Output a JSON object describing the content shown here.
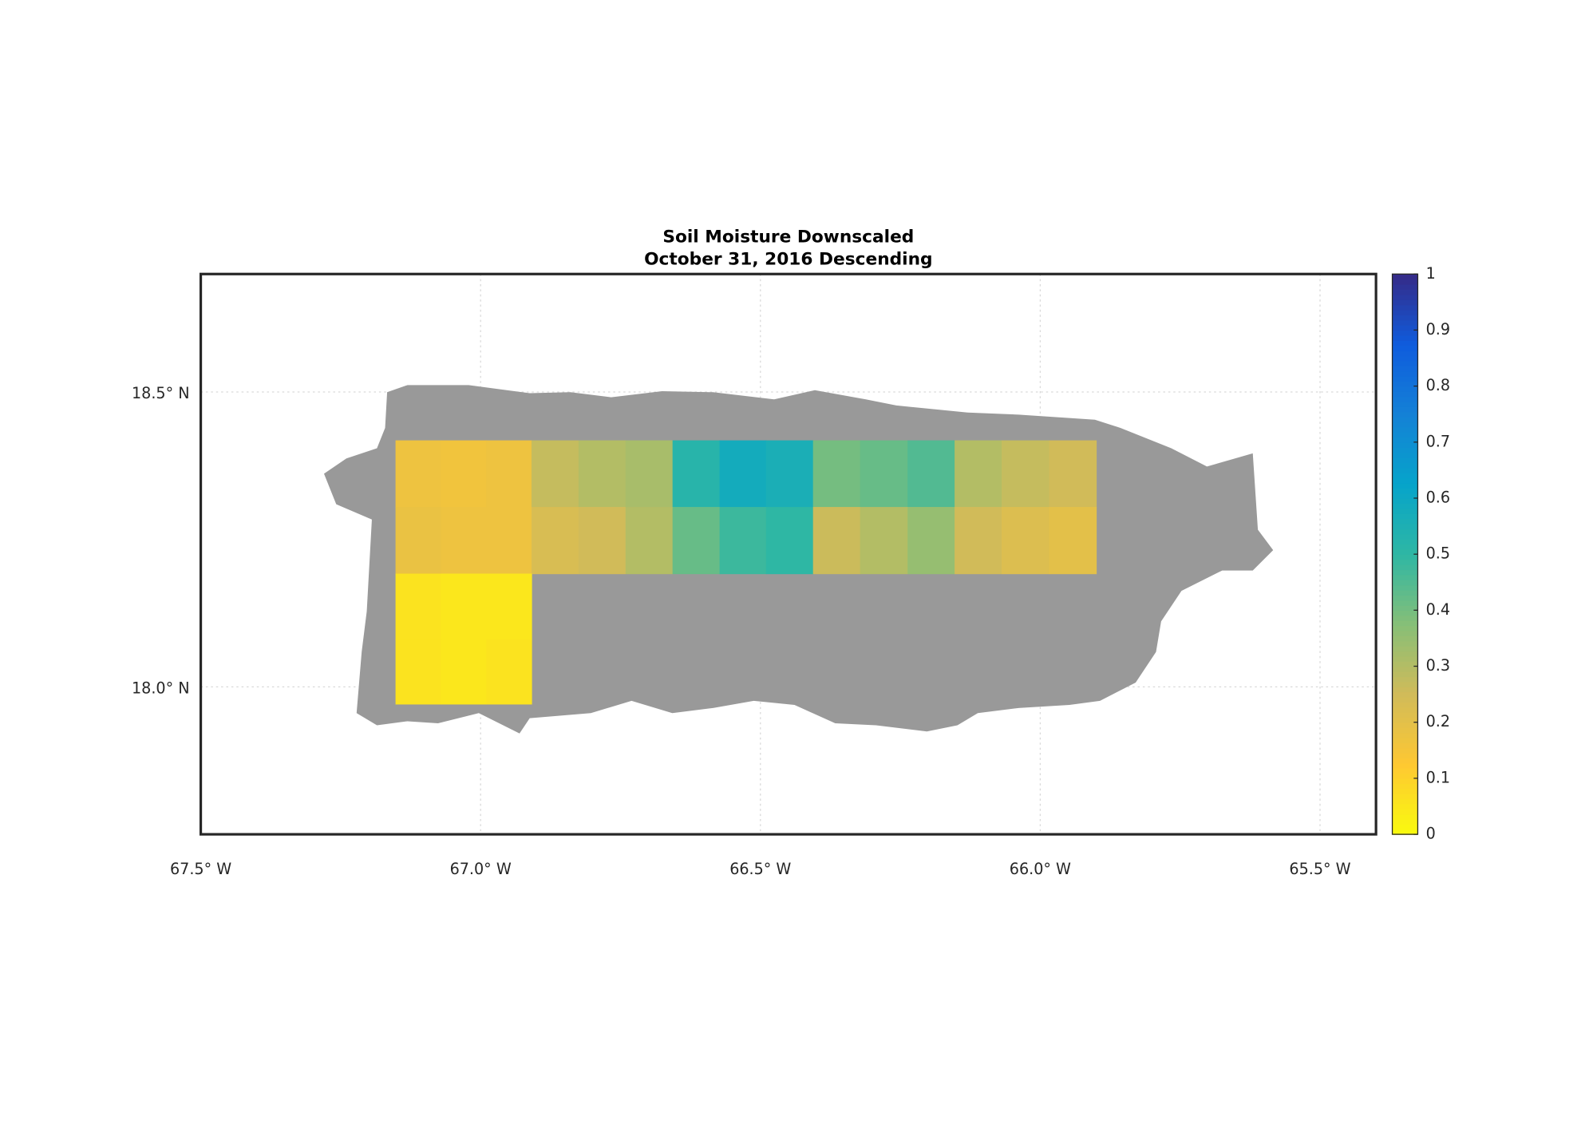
{
  "chart_data": {
    "type": "heatmap-map",
    "title": "Soil Moisture Downscaled",
    "subtitle": "October 31, 2016 Descending",
    "xlim": [
      -67.5,
      -65.4
    ],
    "ylim": [
      17.75,
      18.7
    ],
    "xticks": [
      {
        "value": -67.5,
        "label": "67.5° W"
      },
      {
        "value": -67.0,
        "label": "67.0° W"
      },
      {
        "value": -66.5,
        "label": "66.5° W"
      },
      {
        "value": -66.0,
        "label": "66.0° W"
      },
      {
        "value": -65.5,
        "label": "65.5° W"
      }
    ],
    "yticks": [
      {
        "value": 18.0,
        "label": "18.0° N"
      },
      {
        "value": 18.5,
        "label": "18.5° N"
      }
    ],
    "grid": true,
    "land_color": "#999999",
    "colormap": [
      "#f9fb0e",
      "#fec832",
      "#d1bb59",
      "#87bf77",
      "#2eb7a4",
      "#06a4ca",
      "#1481d6",
      "#0f5cdd",
      "#352a87"
    ],
    "colorbar": {
      "lim": [
        0,
        1
      ],
      "ticks": [
        0,
        0.1,
        0.2,
        0.3,
        0.4,
        0.5,
        0.6,
        0.7,
        0.8,
        0.9,
        1
      ]
    },
    "grid_data": {
      "lon_edges": [
        -67.152,
        -67.071,
        -66.99,
        -66.909,
        -66.825,
        -66.741,
        -66.657,
        -66.573,
        -66.49,
        -66.406,
        -66.322,
        -66.237,
        -66.153,
        -66.069,
        -65.984,
        -65.9
      ],
      "lat_edges": [
        18.418,
        18.305,
        18.192,
        18.08,
        17.971
      ],
      "values": [
        [
          0.17,
          0.16,
          0.17,
          0.27,
          0.3,
          0.32,
          0.52,
          0.58,
          0.56,
          0.4,
          0.42,
          0.45,
          0.3,
          0.27,
          0.25
        ],
        [
          0.18,
          0.17,
          0.17,
          0.23,
          0.25,
          0.3,
          0.42,
          0.48,
          0.5,
          0.26,
          0.3,
          0.35,
          0.25,
          0.22,
          0.2
        ],
        [
          0.06,
          0.05,
          0.05,
          null,
          null,
          null,
          null,
          null,
          null,
          null,
          null,
          null,
          null,
          null,
          null
        ],
        [
          0.06,
          0.05,
          0.06,
          null,
          null,
          null,
          null,
          null,
          null,
          null,
          null,
          null,
          null,
          null,
          null
        ]
      ]
    }
  }
}
